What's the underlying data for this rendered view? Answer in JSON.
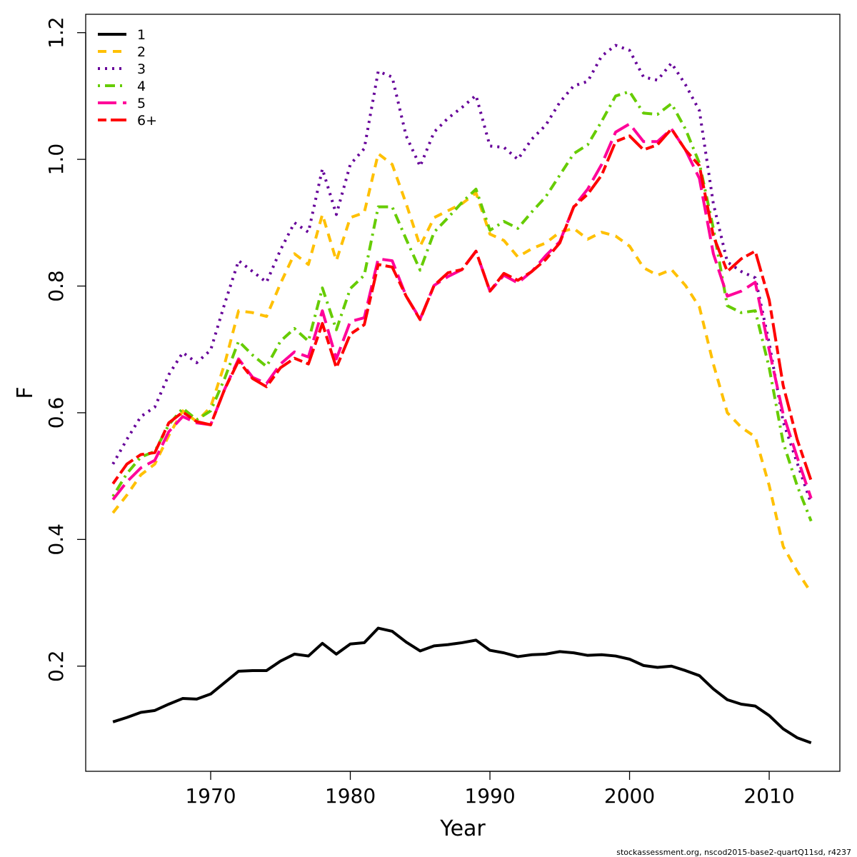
{
  "chart_data": {
    "type": "line",
    "xlabel": "Year",
    "ylabel": "F",
    "footnote": "stockassessment.org, nscod2015-base2-quartQ11sd, r4237",
    "legend": "topleft",
    "x": [
      1963,
      1964,
      1965,
      1966,
      1967,
      1968,
      1969,
      1970,
      1971,
      1972,
      1973,
      1974,
      1975,
      1976,
      1977,
      1978,
      1979,
      1980,
      1981,
      1982,
      1983,
      1984,
      1985,
      1986,
      1987,
      1988,
      1989,
      1990,
      1991,
      1992,
      1993,
      1994,
      1995,
      1996,
      1997,
      1998,
      1999,
      2000,
      2001,
      2002,
      2003,
      2004,
      2005,
      2006,
      2007,
      2008,
      2009,
      2010,
      2011,
      2012,
      2013
    ],
    "xlim": [
      1961.05,
      2015.06
    ],
    "xticks": [
      1970,
      1980,
      1990,
      2000,
      2010
    ],
    "ylim": [
      0.034,
      1.229
    ],
    "yticks": [
      0.2,
      0.4,
      0.6,
      0.8,
      {
        "value": 1,
        "label": "1.0"
      },
      1.2
    ],
    "series": [
      {
        "name": "1",
        "color": "#000000",
        "dash": "solid",
        "values": [
          0.112,
          0.119,
          0.127,
          0.13,
          0.14,
          0.149,
          0.148,
          0.156,
          0.174,
          0.192,
          0.193,
          0.193,
          0.208,
          0.219,
          0.216,
          0.236,
          0.219,
          0.235,
          0.237,
          0.26,
          0.255,
          0.238,
          0.224,
          0.232,
          0.234,
          0.237,
          0.241,
          0.225,
          0.221,
          0.215,
          0.218,
          0.219,
          0.223,
          0.221,
          0.217,
          0.218,
          0.216,
          0.211,
          0.201,
          0.198,
          0.2,
          0.193,
          0.185,
          0.164,
          0.147,
          0.14,
          0.137,
          0.122,
          0.101,
          0.087,
          0.079
        ]
      },
      {
        "name": "2",
        "color": "#ffc000",
        "dash": "dashed",
        "values": [
          0.442,
          0.47,
          0.502,
          0.519,
          0.564,
          0.603,
          0.586,
          0.609,
          0.677,
          0.761,
          0.758,
          0.752,
          0.804,
          0.851,
          0.834,
          0.913,
          0.84,
          0.908,
          0.916,
          1.009,
          0.992,
          0.93,
          0.863,
          0.908,
          0.919,
          0.93,
          0.947,
          0.882,
          0.872,
          0.846,
          0.859,
          0.868,
          0.885,
          0.891,
          0.874,
          0.885,
          0.879,
          0.863,
          0.829,
          0.817,
          0.826,
          0.801,
          0.767,
          0.677,
          0.6,
          0.577,
          0.562,
          0.485,
          0.389,
          0.35,
          0.316
        ]
      },
      {
        "name": "3",
        "color": "#660099",
        "dash": "dotted",
        "values": [
          0.519,
          0.558,
          0.594,
          0.609,
          0.66,
          0.695,
          0.679,
          0.699,
          0.772,
          0.84,
          0.823,
          0.806,
          0.857,
          0.9,
          0.885,
          0.985,
          0.913,
          0.992,
          1.017,
          1.139,
          1.13,
          1.037,
          0.989,
          1.043,
          1.065,
          1.082,
          1.101,
          1.021,
          1.019,
          1.0,
          1.032,
          1.054,
          1.09,
          1.116,
          1.123,
          1.163,
          1.18,
          1.172,
          1.13,
          1.125,
          1.152,
          1.118,
          1.077,
          0.93,
          0.838,
          0.823,
          0.813,
          0.71,
          0.586,
          0.521,
          0.457
        ]
      },
      {
        "name": "4",
        "color": "#66cc00",
        "dash": "dotdash",
        "values": [
          0.468,
          0.504,
          0.53,
          0.539,
          0.581,
          0.607,
          0.589,
          0.603,
          0.654,
          0.713,
          0.691,
          0.673,
          0.713,
          0.733,
          0.713,
          0.797,
          0.731,
          0.796,
          0.817,
          0.925,
          0.925,
          0.874,
          0.825,
          0.885,
          0.908,
          0.932,
          0.953,
          0.888,
          0.902,
          0.891,
          0.917,
          0.941,
          0.975,
          1.009,
          1.023,
          1.06,
          1.1,
          1.107,
          1.073,
          1.071,
          1.088,
          1.048,
          0.994,
          0.891,
          0.769,
          0.758,
          0.761,
          0.671,
          0.553,
          0.485,
          0.429
        ]
      },
      {
        "name": "5",
        "color": "#ff0099",
        "dash": "longdash",
        "values": [
          0.463,
          0.491,
          0.513,
          0.525,
          0.57,
          0.594,
          0.584,
          0.581,
          0.637,
          0.685,
          0.656,
          0.646,
          0.677,
          0.696,
          0.688,
          0.761,
          0.685,
          0.744,
          0.75,
          0.843,
          0.84,
          0.784,
          0.748,
          0.801,
          0.815,
          0.826,
          0.855,
          0.792,
          0.817,
          0.805,
          0.823,
          0.848,
          0.87,
          0.925,
          0.953,
          0.992,
          1.043,
          1.056,
          1.028,
          1.028,
          1.048,
          1.015,
          0.97,
          0.851,
          0.784,
          0.792,
          0.806,
          0.699,
          0.598,
          0.53,
          0.465
        ]
      },
      {
        "name": "6+",
        "color": "#ff0000",
        "dash": "twodash",
        "values": [
          0.488,
          0.519,
          0.534,
          0.537,
          0.584,
          0.601,
          0.586,
          0.581,
          0.637,
          0.682,
          0.654,
          0.641,
          0.671,
          0.686,
          0.677,
          0.741,
          0.671,
          0.724,
          0.739,
          0.834,
          0.83,
          0.784,
          0.747,
          0.801,
          0.821,
          0.826,
          0.855,
          0.792,
          0.82,
          0.809,
          0.823,
          0.842,
          0.868,
          0.925,
          0.945,
          0.975,
          1.028,
          1.037,
          1.015,
          1.023,
          1.048,
          1.015,
          0.99,
          0.879,
          0.823,
          0.843,
          0.855,
          0.778,
          0.643,
          0.558,
          0.493
        ]
      }
    ]
  }
}
